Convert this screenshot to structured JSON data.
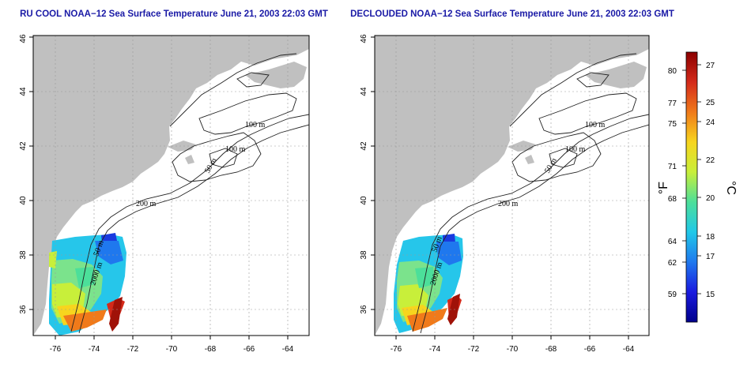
{
  "panels": [
    {
      "id": "rucool",
      "title": "RU COOL NOAA−12 Sea Surface Temperature June 21, 2003 22:03 GMT",
      "contour_labels": [
        "100 m",
        "100 m",
        "50 m",
        "200 m",
        "50 m",
        "2000 m"
      ]
    },
    {
      "id": "declouded",
      "title": "DECLOUDED NOAA−12 Sea Surface Temperature June 21, 2003 22:03 GMT",
      "contour_labels": [
        "100 m",
        "100 m",
        "50 m",
        "200 m",
        "50 m",
        "2000 m"
      ]
    }
  ],
  "axes": {
    "lon_ticks": [
      "-76",
      "-74",
      "-72",
      "-70",
      "-68",
      "-66",
      "-64"
    ],
    "lat_ticks": [
      "36",
      "38",
      "40",
      "42",
      "44",
      "46"
    ],
    "grid": "dotted"
  },
  "colorbar": {
    "fahrenheit_unit": "°F",
    "celsius_unit": "°C",
    "fahrenheit_ticks": [
      "80",
      "77",
      "75",
      "71",
      "68",
      "64",
      "62",
      "59"
    ],
    "celsius_ticks": [
      "27",
      "25",
      "24",
      "22",
      "20",
      "18",
      "17",
      "15"
    ],
    "colors": [
      "#8b0000",
      "#d42a1a",
      "#f07a1a",
      "#f7d51e",
      "#c8ef3a",
      "#4cdf9a",
      "#20c8e8",
      "#1f78ee",
      "#1a1adf",
      "#00008b"
    ]
  },
  "colors": {
    "land": "#c0c0c0",
    "title": "#1a1aa6"
  }
}
